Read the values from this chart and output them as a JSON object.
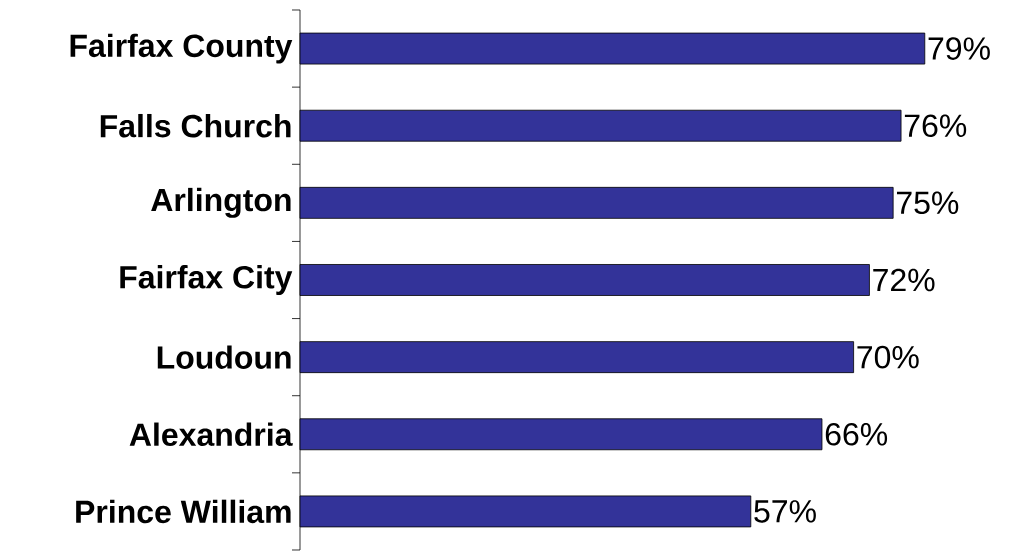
{
  "chart_data": {
    "type": "bar",
    "orientation": "horizontal",
    "categories": [
      "Fairfax County",
      "Falls Church",
      "Arlington",
      "Fairfax City",
      "Loudoun",
      "Alexandria",
      "Prince William"
    ],
    "values": [
      79,
      76,
      75,
      72,
      70,
      66,
      57
    ],
    "value_labels": [
      "79%",
      "76%",
      "75%",
      "72%",
      "70%",
      "66%",
      "57%"
    ],
    "color": "#333399"
  }
}
